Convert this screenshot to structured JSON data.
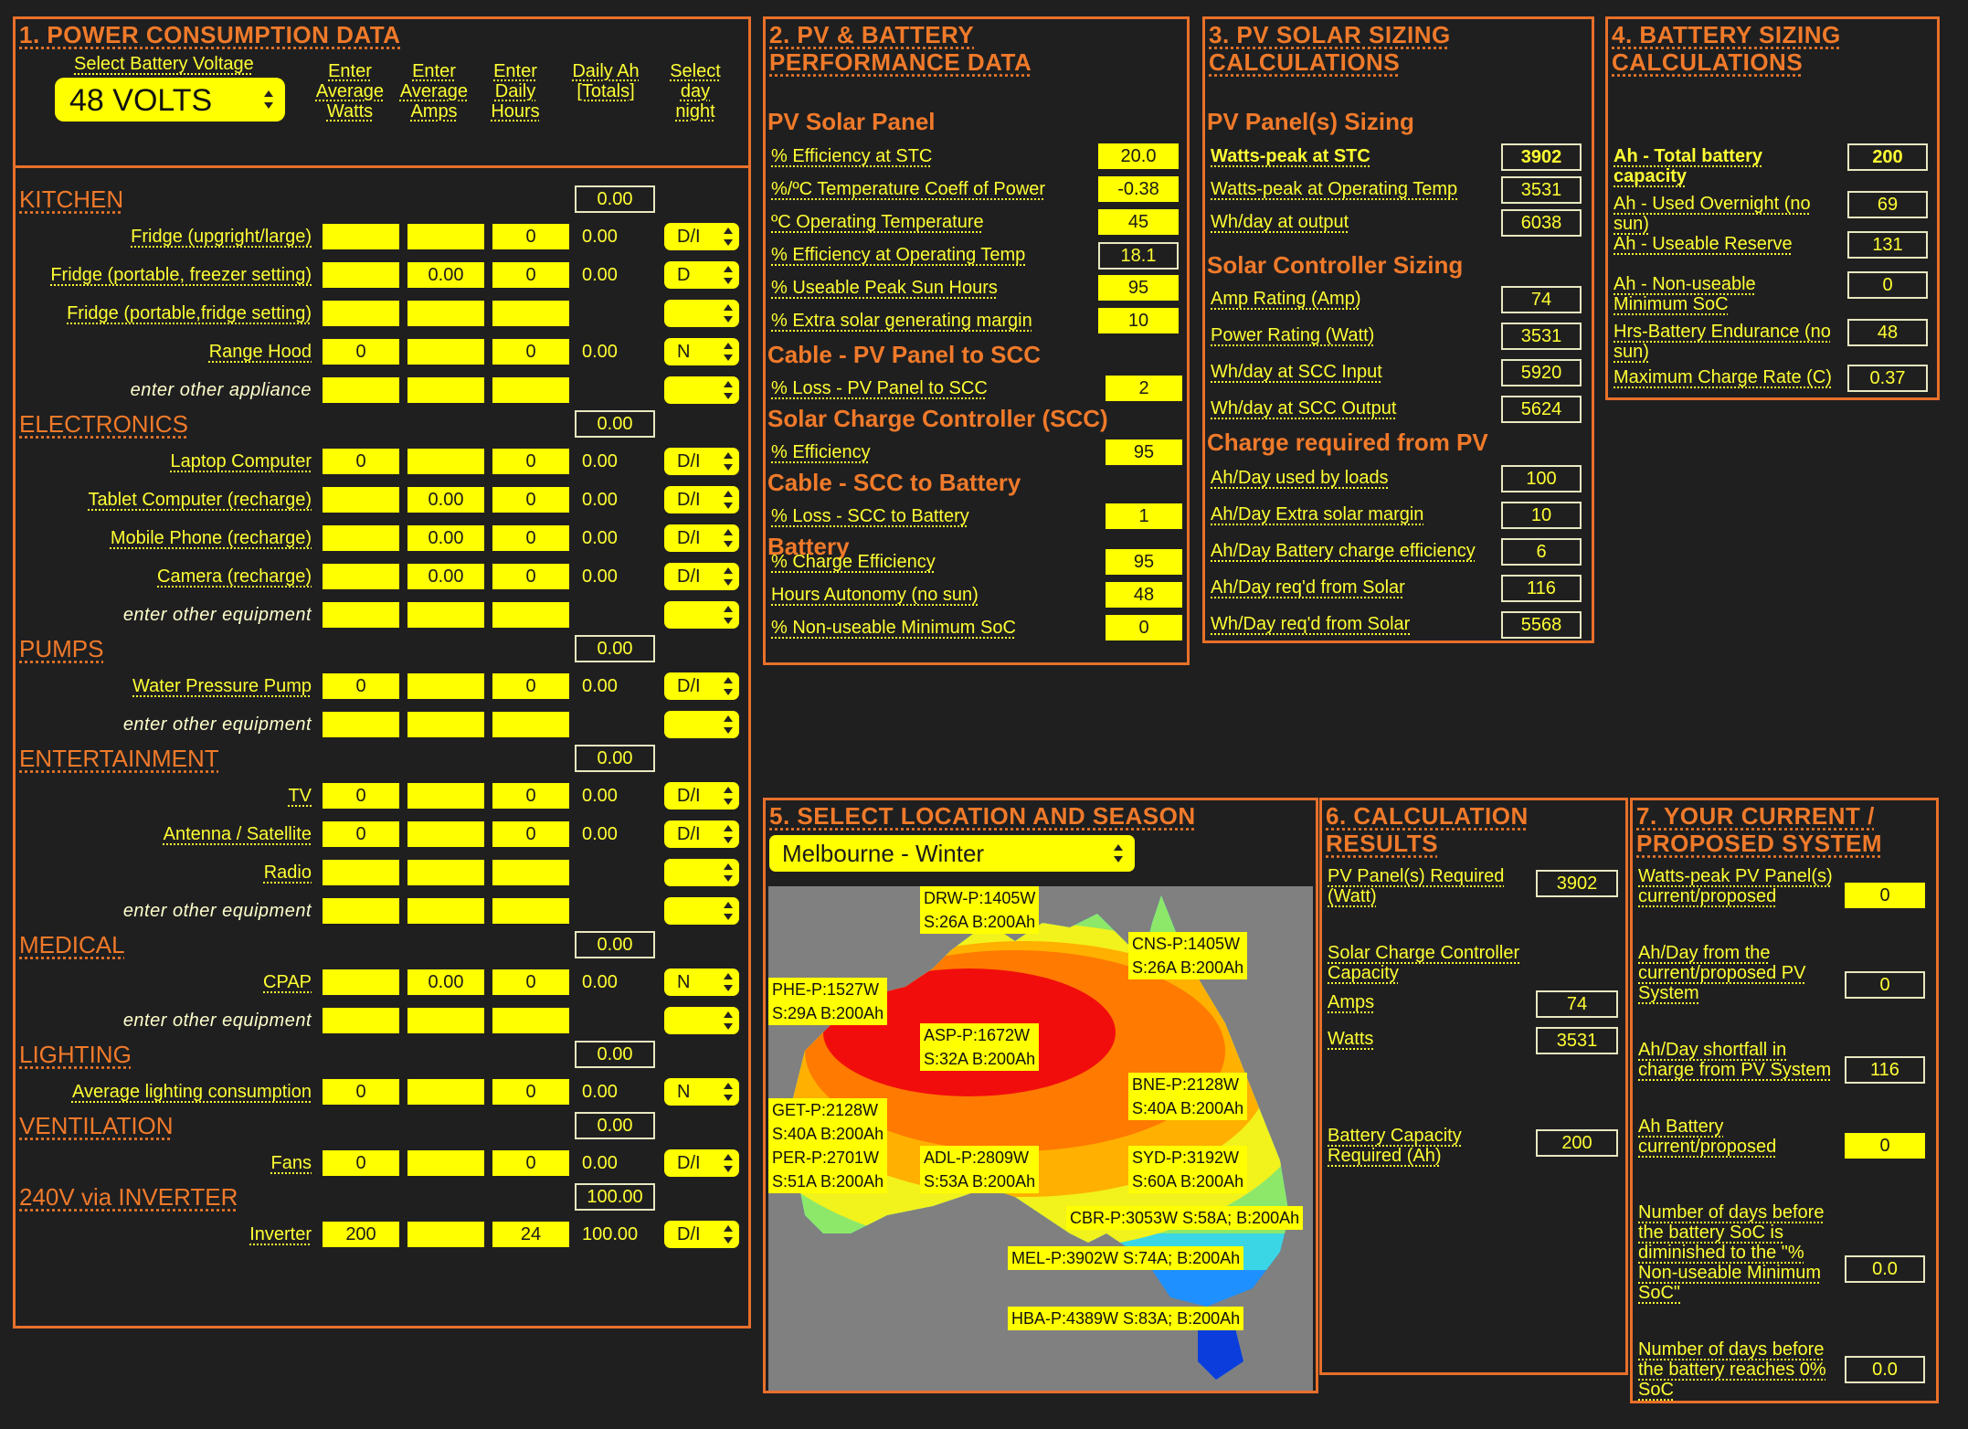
{
  "panel1": {
    "title": "1. POWER CONSUMPTION DATA",
    "battery_voltage_label": "Select Battery Voltage",
    "battery_voltage_value": "48 VOLTS",
    "col_headers": [
      "Enter Average Watts",
      "Enter Average Amps",
      "Enter Daily Hours",
      "Daily Ah [Totals]",
      "Select day night"
    ],
    "sections": {
      "kitchen": {
        "title": "KITCHEN",
        "total": "0.00"
      },
      "electronics": {
        "title": "ELECTRONICS",
        "total": "0.00"
      },
      "pumps": {
        "title": "PUMPS",
        "total": "0.00"
      },
      "entertainment": {
        "title": "ENTERTAINMENT",
        "total": "0.00"
      },
      "medical": {
        "title": "MEDICAL",
        "total": "0.00"
      },
      "lighting": {
        "title": "LIGHTING",
        "total": "0.00"
      },
      "ventilation": {
        "title": "VENTILATION",
        "total": "0.00"
      },
      "inverter": {
        "title": "240V via INVERTER",
        "total": "100.00"
      }
    },
    "rows": {
      "fridge_upright": {
        "label": "Fridge (upgright/large)",
        "watts": "",
        "amps": "",
        "hours": "0",
        "ah": "0.00",
        "dn": "D/I"
      },
      "fridge_freezer": {
        "label": "Fridge (portable, freezer setting)",
        "watts": "",
        "amps": "0.00",
        "hours": "0",
        "ah": "0.00",
        "dn": "D"
      },
      "fridge_fridge": {
        "label": "Fridge (portable,fridge setting)",
        "watts": "",
        "amps": "",
        "hours": "",
        "ah": "",
        "dn": ""
      },
      "range_hood": {
        "label": "Range Hood",
        "watts": "0",
        "amps": "",
        "hours": "0",
        "ah": "0.00",
        "dn": "N"
      },
      "other_appliance": {
        "label": "enter other appliance",
        "watts": "",
        "amps": "",
        "hours": "",
        "ah": "",
        "dn": ""
      },
      "laptop": {
        "label": "Laptop Computer",
        "watts": "0",
        "amps": "",
        "hours": "0",
        "ah": "0.00",
        "dn": "D/I"
      },
      "tablet": {
        "label": "Tablet Computer (recharge)",
        "watts": "",
        "amps": "0.00",
        "hours": "0",
        "ah": "0.00",
        "dn": "D/I"
      },
      "mobile": {
        "label": "Mobile Phone (recharge)",
        "watts": "",
        "amps": "0.00",
        "hours": "0",
        "ah": "0.00",
        "dn": "D/I"
      },
      "camera": {
        "label": "Camera (recharge)",
        "watts": "",
        "amps": "0.00",
        "hours": "0",
        "ah": "0.00",
        "dn": "D/I"
      },
      "other_elec": {
        "label": "enter other equipment",
        "watts": "",
        "amps": "",
        "hours": "",
        "ah": "",
        "dn": ""
      },
      "water_pump": {
        "label": "Water Pressure Pump",
        "watts": "0",
        "amps": "",
        "hours": "0",
        "ah": "0.00",
        "dn": "D/I"
      },
      "other_pump": {
        "label": "enter other equipment",
        "watts": "",
        "amps": "",
        "hours": "",
        "ah": "",
        "dn": ""
      },
      "tv": {
        "label": "TV",
        "watts": "0",
        "amps": "",
        "hours": "0",
        "ah": "0.00",
        "dn": "D/I"
      },
      "antenna": {
        "label": "Antenna / Satellite",
        "watts": "0",
        "amps": "",
        "hours": "0",
        "ah": "0.00",
        "dn": "D/I"
      },
      "radio": {
        "label": "Radio",
        "watts": "",
        "amps": "",
        "hours": "",
        "ah": "",
        "dn": ""
      },
      "other_ent": {
        "label": "enter other equipment",
        "watts": "",
        "amps": "",
        "hours": "",
        "ah": "",
        "dn": ""
      },
      "cpap": {
        "label": "CPAP",
        "watts": "",
        "amps": "0.00",
        "hours": "0",
        "ah": "0.00",
        "dn": "N"
      },
      "other_med": {
        "label": "enter other equipment",
        "watts": "",
        "amps": "",
        "hours": "",
        "ah": "",
        "dn": ""
      },
      "lighting": {
        "label": "Average lighting consumption",
        "watts": "0",
        "amps": "",
        "hours": "0",
        "ah": "0.00",
        "dn": "N"
      },
      "fans": {
        "label": "Fans",
        "watts": "0",
        "amps": "",
        "hours": "0",
        "ah": "0.00",
        "dn": "D/I"
      },
      "inverter": {
        "label": "Inverter",
        "watts": "200",
        "amps": "",
        "hours": "24",
        "ah": "100.00",
        "dn": "D/I"
      }
    }
  },
  "panel2": {
    "title": "2. PV & BATTERY PERFORMANCE DATA",
    "s_pv": "PV Solar Panel",
    "eff_stc": {
      "label": "% Efficiency at STC",
      "value": "20.0"
    },
    "temp_coeff": {
      "label": "%/ºC Temperature Coeff of Power",
      "value": "-0.38"
    },
    "op_temp": {
      "label": "ºC Operating Temperature",
      "value": "45"
    },
    "eff_op": {
      "label": "% Efficiency at Operating Temp",
      "value": "18.1"
    },
    "peak_sun": {
      "label": "% Useable Peak Sun Hours",
      "value": "95"
    },
    "extra_solar": {
      "label": "% Extra solar generating margin",
      "value": "10"
    },
    "s_cable1": "Cable - PV Panel to SCC",
    "loss_pv_scc": {
      "label": "% Loss - PV Panel to SCC",
      "value": "2"
    },
    "s_scc": "Solar Charge Controller (SCC)",
    "scc_eff": {
      "label": "% Efficiency",
      "value": "95"
    },
    "s_cable2": "Cable - SCC to Battery",
    "loss_scc_bat": {
      "label": "% Loss - SCC to Battery",
      "value": "1"
    },
    "s_battery": "Battery",
    "charge_eff": {
      "label": "% Charge Efficiency",
      "value": "95"
    },
    "autonomy": {
      "label": "Hours Autonomy (no sun)",
      "value": "48"
    },
    "min_soc": {
      "label": "% Non-useable Minimum SoC",
      "value": "0"
    }
  },
  "panel3": {
    "title": "3. PV SOLAR SIZING CALCULATIONS",
    "s_pv": "PV Panel(s) Sizing",
    "wp_stc": {
      "label": "Watts-peak at STC",
      "value": "3902"
    },
    "wp_op": {
      "label": "Watts-peak at Operating Temp",
      "value": "3531"
    },
    "wh_out": {
      "label": "Wh/day at output",
      "value": "6038"
    },
    "s_sc": "Solar Controller Sizing",
    "amp_rating": {
      "label": "Amp Rating (Amp)",
      "value": "74"
    },
    "power_rating": {
      "label": "Power Rating (Watt)",
      "value": "3531"
    },
    "wh_scc_in": {
      "label": "Wh/day at SCC Input",
      "value": "5920"
    },
    "wh_scc_out": {
      "label": "Wh/day at SCC Output",
      "value": "5624"
    },
    "s_charge": "Charge required from PV",
    "ah_loads": {
      "label": "Ah/Day used by loads",
      "value": "100"
    },
    "ah_extra": {
      "label": "Ah/Day Extra solar margin",
      "value": "10"
    },
    "ah_bat_eff": {
      "label": "Ah/Day Battery charge efficiency",
      "value": "6"
    },
    "ah_req": {
      "label": "Ah/Day req'd from Solar",
      "value": "116"
    },
    "wh_req": {
      "label": "Wh/Day req'd from Solar",
      "value": "5568"
    }
  },
  "panel4": {
    "title": "4. BATTERY SIZING CALCULATIONS",
    "total_cap": {
      "label": "Ah - Total battery capacity",
      "value": "200"
    },
    "used_overnight": {
      "label": "Ah - Used Overnight (no sun)",
      "value": "69"
    },
    "useable_reserve": {
      "label": "Ah - Useable Reserve",
      "value": "131"
    },
    "non_useable": {
      "label": "Ah - Non-useable Minimum SoC",
      "value": "0"
    },
    "endurance": {
      "label": "Hrs-Battery Endurance (no sun)",
      "value": "48"
    },
    "max_charge": {
      "label": "Maximum Charge Rate (C)",
      "value": "0.37"
    }
  },
  "panel5": {
    "title": "5. SELECT LOCATION AND SEASON",
    "location_value": "Melbourne - Winter",
    "tags": {
      "drw": [
        "DRW-P:1405W",
        "S:26A B:200Ah"
      ],
      "cns": [
        "CNS-P:1405W",
        "S:26A B:200Ah"
      ],
      "phe": [
        "PHE-P:1527W",
        "S:29A B:200Ah"
      ],
      "asp": [
        "ASP-P:1672W",
        "S:32A B:200Ah"
      ],
      "bne": [
        "BNE-P:2128W",
        "S:40A B:200Ah"
      ],
      "get": [
        "GET-P:2128W",
        "S:40A B:200Ah"
      ],
      "per": [
        "PER-P:2701W",
        "S:51A B:200Ah"
      ],
      "adl": [
        "ADL-P:2809W",
        "S:53A B:200Ah"
      ],
      "syd": [
        "SYD-P:3192W",
        "S:60A B:200Ah"
      ],
      "cbr": "CBR-P:3053W S:58A; B:200Ah",
      "mel": "MEL-P:3902W S:74A; B:200Ah",
      "hba": "HBA-P:4389W S:83A; B:200Ah"
    }
  },
  "panel6": {
    "title": "6. CALCULATION RESULTS",
    "pv_required": {
      "label": "PV Panel(s) Required (Watt)",
      "value": "3902"
    },
    "scc_capacity": "Solar Charge Controller Capacity",
    "amps": {
      "label": "Amps",
      "value": "74"
    },
    "watts": {
      "label": "Watts",
      "value": "3531"
    },
    "battery_cap": {
      "label": "Battery Capacity Required (Ah)",
      "value": "200"
    }
  },
  "panel7": {
    "title": "7. YOUR CURRENT / PROPOSED SYSTEM",
    "wp_current": {
      "label": "Watts-peak PV Panel(s) current/proposed",
      "value": "0"
    },
    "ah_from_pv": {
      "label": "Ah/Day from the current/proposed PV System",
      "value": "0"
    },
    "shortfall": {
      "label": "Ah/Day shortfall in charge from PV System",
      "value": "116"
    },
    "ah_battery": {
      "label": "Ah Battery current/proposed",
      "value": "0"
    },
    "days_min_soc": {
      "label": "Number of days before the battery SoC is diminished to the \"% Non-useable Minimum SoC\"",
      "value": "0.0"
    },
    "days_zero": {
      "label": "Number of days before the battery reaches 0% SoC",
      "value": "0.0"
    }
  },
  "colors": {
    "accent": "#e8702a",
    "field": "#ffff00",
    "text": "#ffff33",
    "background": "#201f20"
  }
}
